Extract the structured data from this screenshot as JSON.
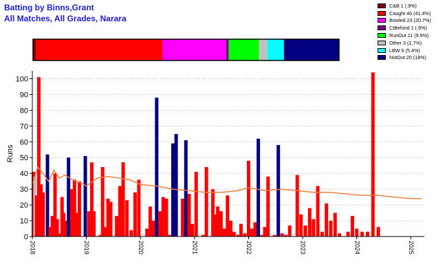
{
  "title": {
    "line1": "Batting by Binns,Grant",
    "line2": "All Matches, All Grades, Narara"
  },
  "legend": [
    {
      "label": "C&B 1 (.9%)",
      "color": "#800000",
      "key": "cb"
    },
    {
      "label": "Caught 46 (41.4%)",
      "color": "#ff0000",
      "key": "caught"
    },
    {
      "label": "Bowled 23 (20.7%)",
      "color": "#ff00ff",
      "key": "bowled"
    },
    {
      "label": "CtBehind 1 (.9%)",
      "color": "#800080",
      "key": "ctbehind"
    },
    {
      "label": "RunOut 11 (9.9%)",
      "color": "#00ff00",
      "key": "runout"
    },
    {
      "label": "Other 3 (2.7%)",
      "color": "#c0c0c0",
      "key": "other"
    },
    {
      "label": "LBW 6 (5.4%)",
      "color": "#00ffff",
      "key": "lbw"
    },
    {
      "label": "NotOut 20 (18%)",
      "color": "#000080",
      "key": "notout"
    }
  ],
  "chart_data": {
    "type": "bar",
    "ylabel": "Runs",
    "ylim": [
      0,
      105
    ],
    "yticks": [
      0,
      10,
      20,
      30,
      40,
      50,
      60,
      70,
      80,
      90,
      100
    ],
    "xticks": [
      "2018",
      "2019",
      "2020",
      "2021",
      "2022",
      "2023",
      "2024",
      "2025"
    ],
    "xlim": [
      2018.0,
      2025.25
    ],
    "grid": "horizontal dotted",
    "dismissal_summary": [
      {
        "key": "cb",
        "count": 1
      },
      {
        "key": "caught",
        "count": 46
      },
      {
        "key": "bowled",
        "count": 23
      },
      {
        "key": "ctbehind",
        "count": 1
      },
      {
        "key": "runout",
        "count": 11
      },
      {
        "key": "other",
        "count": 3
      },
      {
        "key": "lbw",
        "count": 6
      },
      {
        "key": "notout",
        "count": 20
      }
    ],
    "series": [
      {
        "type": "bar",
        "x": [
          2018.02,
          2018.05,
          2018.08,
          2018.12,
          2018.16,
          2018.2,
          2018.24,
          2018.28,
          2018.33,
          2018.37,
          2018.42,
          2018.46,
          2018.5,
          2018.55,
          2018.58,
          2018.63,
          2018.67,
          2018.73,
          2018.78,
          2018.83,
          2018.87,
          2018.93,
          2018.98,
          2019.05,
          2019.1,
          2019.14,
          2019.2,
          2019.26,
          2019.3,
          2019.35,
          2019.4,
          2019.45,
          2019.51,
          2019.56,
          2019.62,
          2019.68,
          2019.75,
          2019.83,
          2019.9,
          2019.97,
          2020.05,
          2020.12,
          2020.18,
          2020.24,
          2020.3,
          2020.36,
          2020.42,
          2020.48,
          2020.54,
          2020.6,
          2020.66,
          2020.72,
          2020.78,
          2020.84,
          2020.9,
          2020.96,
          2021.03,
          2021.1,
          2021.16,
          2021.22,
          2021.28,
          2021.34,
          2021.38,
          2021.43,
          2021.49,
          2021.55,
          2021.61,
          2021.67,
          2021.73,
          2021.8,
          2021.86,
          2021.93,
          2022.0,
          2022.06,
          2022.12,
          2022.18,
          2022.24,
          2022.3,
          2022.36,
          2022.42,
          2022.48,
          2022.55,
          2022.62,
          2022.69,
          2022.76,
          2022.83,
          2022.9,
          2022.97,
          2023.05,
          2023.13,
          2023.2,
          2023.28,
          2023.36,
          2023.44,
          2023.52,
          2023.6,
          2023.68,
          2023.76,
          2023.84,
          2023.92,
          2024.0,
          2024.1,
          2024.2,
          2024.3,
          2024.4,
          2024.48,
          2024.56,
          2024.64,
          2024.72,
          2024.8,
          2024.88,
          2024.96,
          2025.04,
          2025.12,
          2025.2
        ],
        "values": [
          41,
          38,
          26,
          101,
          33,
          28,
          0,
          52,
          6,
          13,
          40,
          11,
          2,
          25,
          15,
          10,
          50,
          30,
          36,
          15,
          35,
          0,
          51,
          16,
          47,
          16,
          0,
          1,
          44,
          6,
          24,
          22,
          0,
          13,
          32,
          47,
          23,
          4,
          28,
          36,
          0,
          5,
          19,
          10,
          88,
          16,
          25,
          24,
          1,
          59,
          65,
          0,
          24,
          61,
          27,
          8,
          41,
          0,
          1,
          44,
          0,
          30,
          14,
          19,
          16,
          5,
          26,
          10,
          3,
          1,
          8,
          2,
          48,
          5,
          9,
          62,
          1,
          6,
          38,
          0,
          1,
          58,
          2,
          1,
          7,
          0,
          39,
          14,
          7,
          18,
          11,
          32,
          3,
          21,
          10,
          15,
          2,
          0,
          3,
          13,
          5,
          3,
          3,
          104,
          6,
          0,
          0,
          0,
          0,
          0,
          0,
          0,
          0,
          0,
          0
        ],
        "outcomes": [
          "caught",
          "other",
          "caught",
          "caught",
          "caught",
          "caught",
          "caught",
          "notout",
          "caught",
          "caught",
          "caught",
          "caught",
          "caught",
          "caught",
          "caught",
          "caught",
          "notout",
          "caught",
          "caught",
          "caught",
          "caught",
          "caught",
          "notout",
          "caught",
          "caught",
          "caught",
          "caught",
          "caught",
          "caught",
          "caught",
          "caught",
          "caught",
          "caught",
          "caught",
          "caught",
          "caught",
          "caught",
          "caught",
          "caught",
          "caught",
          "caught",
          "caught",
          "caught",
          "caught",
          "notout",
          "caught",
          "caught",
          "caught",
          "caught",
          "notout",
          "notout",
          "caught",
          "caught",
          "notout",
          "caught",
          "caught",
          "caught",
          "caught",
          "caught",
          "caught",
          "caught",
          "caught",
          "caught",
          "caught",
          "caught",
          "caught",
          "caught",
          "caught",
          "caught",
          "caught",
          "caught",
          "caught",
          "caught",
          "caught",
          "caught",
          "notout",
          "caught",
          "caught",
          "caught",
          "caught",
          "caught",
          "notout",
          "caught",
          "caught",
          "caught",
          "caught",
          "caught",
          "caught",
          "caught",
          "caught",
          "caught",
          "caught",
          "caught",
          "caught",
          "caught",
          "caught",
          "caught",
          "caught",
          "caught",
          "caught",
          "caught",
          "caught",
          "caught",
          "caught",
          "caught",
          "caught",
          "caught",
          "caught",
          "caught",
          "caught",
          "caught",
          "caught",
          "caught",
          "caught",
          "caught"
        ]
      },
      {
        "type": "line",
        "color": "#f08040",
        "x": [
          2018.0,
          2018.1,
          2018.2,
          2018.3,
          2018.4,
          2018.5,
          2018.6,
          2018.7,
          2018.8,
          2018.9,
          2019.0,
          2019.2,
          2019.4,
          2019.6,
          2019.8,
          2020.0,
          2020.3,
          2020.6,
          2020.9,
          2021.2,
          2021.5,
          2021.8,
          2022.0,
          2022.3,
          2022.6,
          2022.9,
          2023.2,
          2023.5,
          2023.8,
          2024.1,
          2024.4,
          2024.7,
          2025.0,
          2025.2
        ],
        "values": [
          33,
          44,
          40,
          35,
          42,
          37,
          39,
          37,
          35,
          34,
          32,
          37,
          38,
          37,
          36,
          33,
          32,
          30,
          29,
          28,
          28,
          29,
          31,
          29,
          30,
          29,
          28,
          28,
          27,
          26,
          26,
          25,
          24,
          24
        ]
      }
    ]
  }
}
